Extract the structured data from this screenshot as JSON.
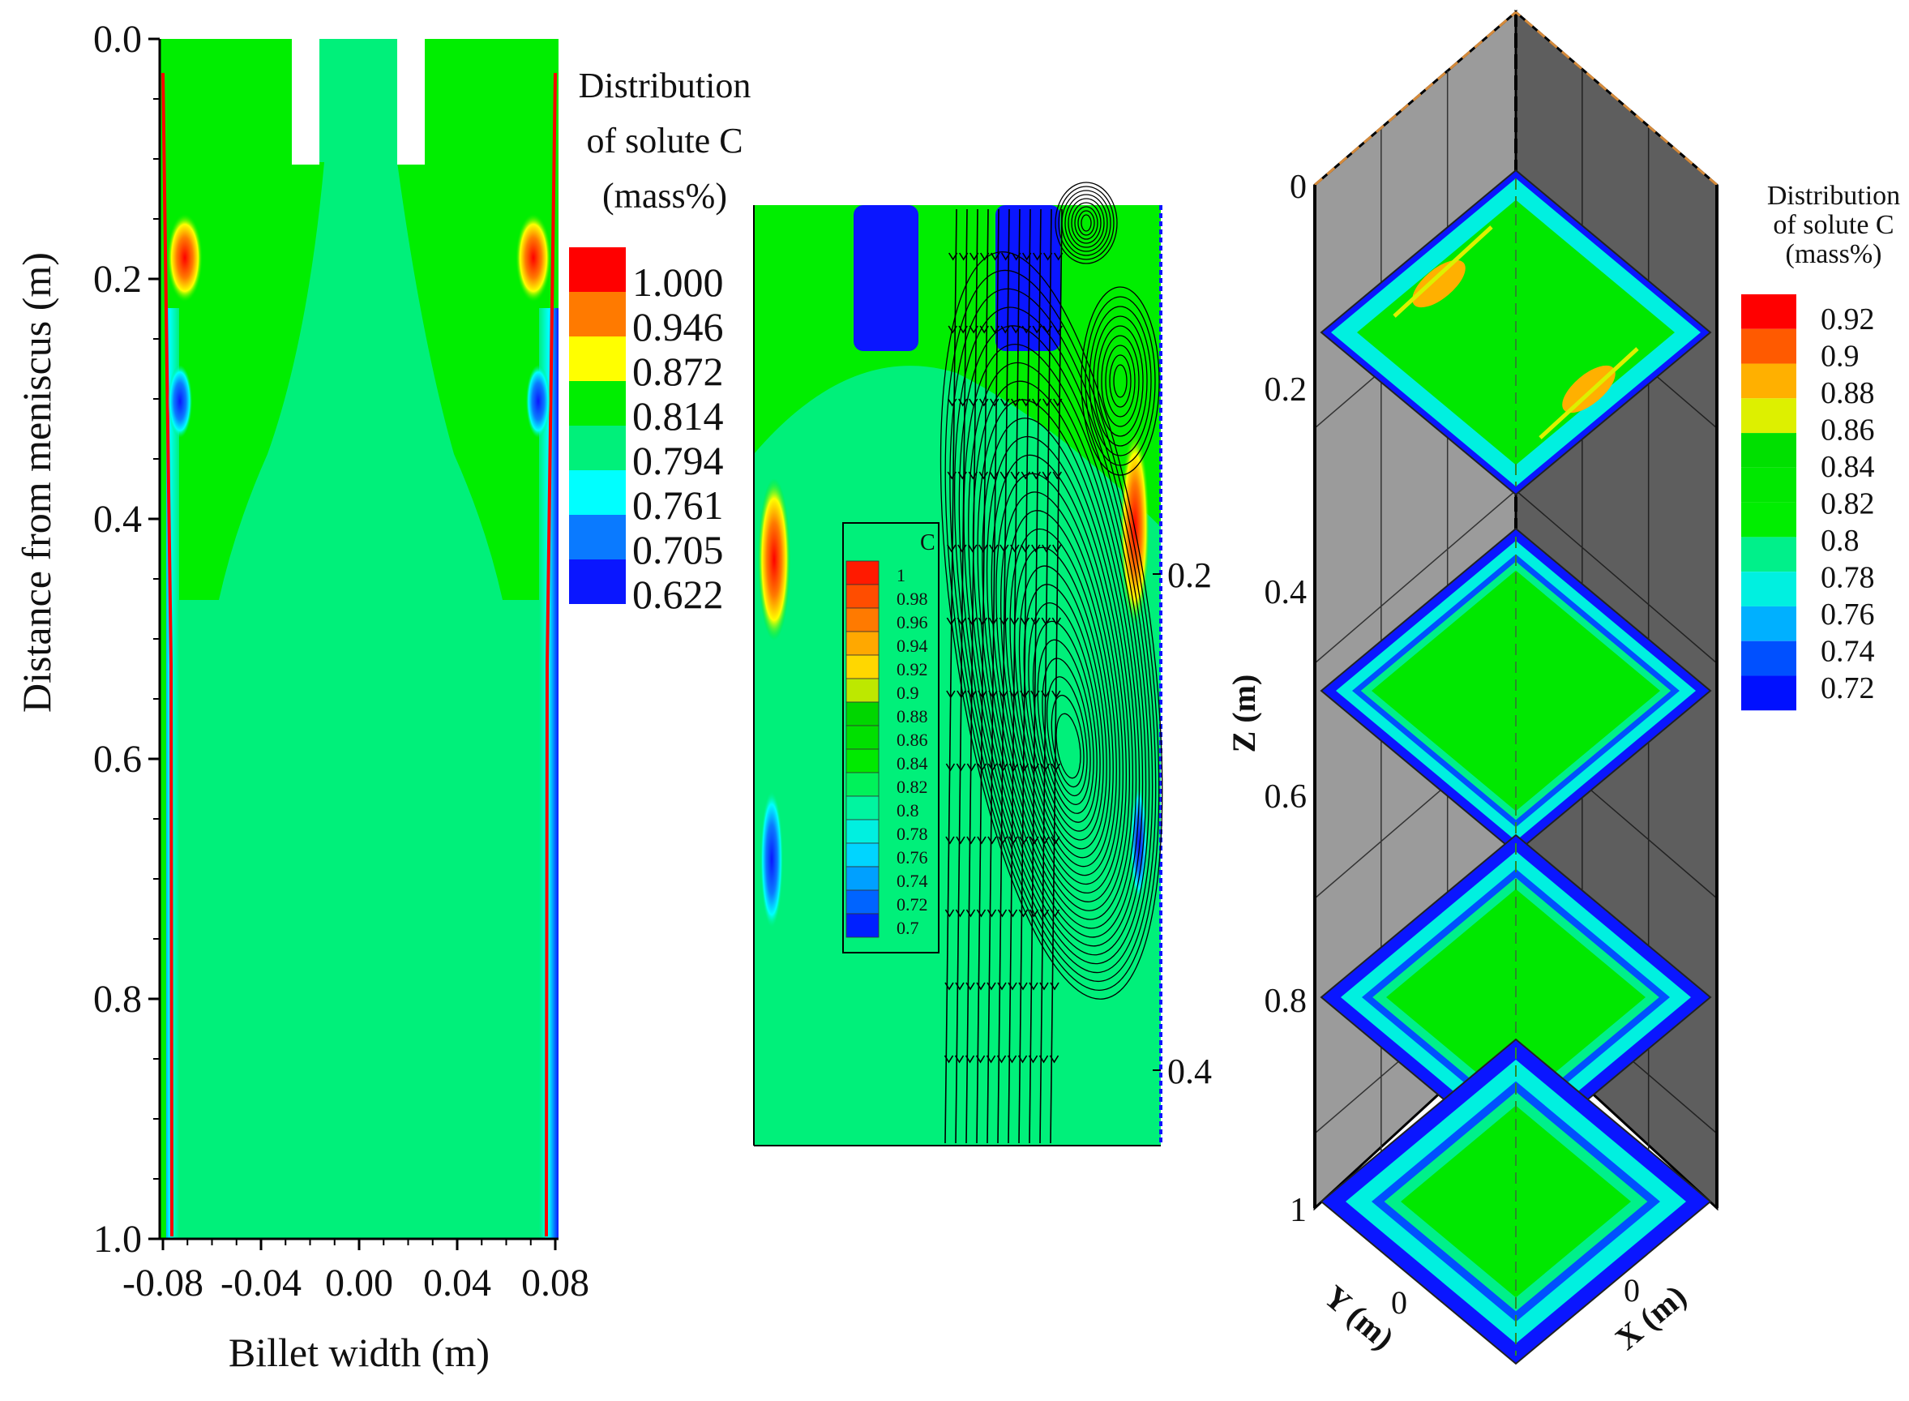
{
  "colors": {
    "green": "#00ee00",
    "light_green": "#00f07a",
    "red": "#ff0000",
    "blue": "#0a16ff",
    "panel_gray": "#9b9b9b",
    "panel_dark": "#5e5e5e",
    "edge_orange": "#d58a3a"
  },
  "chart_data": [
    {
      "type": "heatmap",
      "title": "",
      "xlabel": "Billet width (m)",
      "ylabel": "Distance from meniscus (m)",
      "x_ticks": [
        "-0.08",
        "-0.04",
        "0.00",
        "0.04",
        "0.08"
      ],
      "y_ticks": [
        "0.0",
        "0.2",
        "0.4",
        "0.6",
        "0.8",
        "1.0"
      ],
      "xlim": [
        -0.08,
        0.08
      ],
      "ylim": [
        0.0,
        1.0
      ],
      "y_inverted": true,
      "legend": {
        "title_lines": [
          "Distribution",
          "of solute C",
          "(mass%)"
        ],
        "levels": [
          "1.000",
          "0.946",
          "0.872",
          "0.814",
          "0.794",
          "0.761",
          "0.705",
          "0.622"
        ],
        "colors": [
          "#ff0000",
          "#ff7a00",
          "#ffff00",
          "#00ee00",
          "#00f07a",
          "#00ffff",
          "#0a7aff",
          "#0a16ff"
        ],
        "placement": "right"
      }
    },
    {
      "type": "heatmap",
      "title": "",
      "y_ticks": [
        "0.2",
        "0.4"
      ],
      "streamlines": true,
      "legend": {
        "title": "C",
        "levels": [
          "1",
          "0.98",
          "0.96",
          "0.94",
          "0.92",
          "0.9",
          "0.88",
          "0.86",
          "0.84",
          "0.82",
          "0.8",
          "0.78",
          "0.76",
          "0.74",
          "0.72",
          "0.7"
        ],
        "colors": [
          "#ff1a00",
          "#ff4d00",
          "#ff7a00",
          "#ffa800",
          "#ffd700",
          "#bde800",
          "#00d600",
          "#00e000",
          "#00ea00",
          "#00f25a",
          "#00f5a0",
          "#00f0e0",
          "#00d5ff",
          "#00a0ff",
          "#0064ff",
          "#0020ff"
        ],
        "placement": "inside-left"
      }
    },
    {
      "type": "heatmap",
      "title": "",
      "zlabel": "Z (m)",
      "xlabel": "X (m)",
      "ylabel": "Y (m)",
      "z_ticks": [
        "0",
        "0.2",
        "0.4",
        "0.6",
        "0.8",
        "1"
      ],
      "x_ticks": [
        "0"
      ],
      "y_ticks": [
        "0"
      ],
      "slices_z": [
        0.15,
        0.5,
        0.8,
        1.0
      ],
      "legend": {
        "title_lines": [
          "Distribution",
          "of solute C",
          "(mass%)"
        ],
        "levels": [
          "0.92",
          "0.9",
          "0.88",
          "0.86",
          "0.84",
          "0.82",
          "0.8",
          "0.78",
          "0.76",
          "0.74",
          "0.72"
        ],
        "colors": [
          "#ff0000",
          "#ff5a00",
          "#ffb000",
          "#ddf000",
          "#00e000",
          "#00e800",
          "#00ee00",
          "#00f08a",
          "#00f0e0",
          "#00b0ff",
          "#0050ff",
          "#0010ff"
        ],
        "placement": "right"
      }
    }
  ]
}
